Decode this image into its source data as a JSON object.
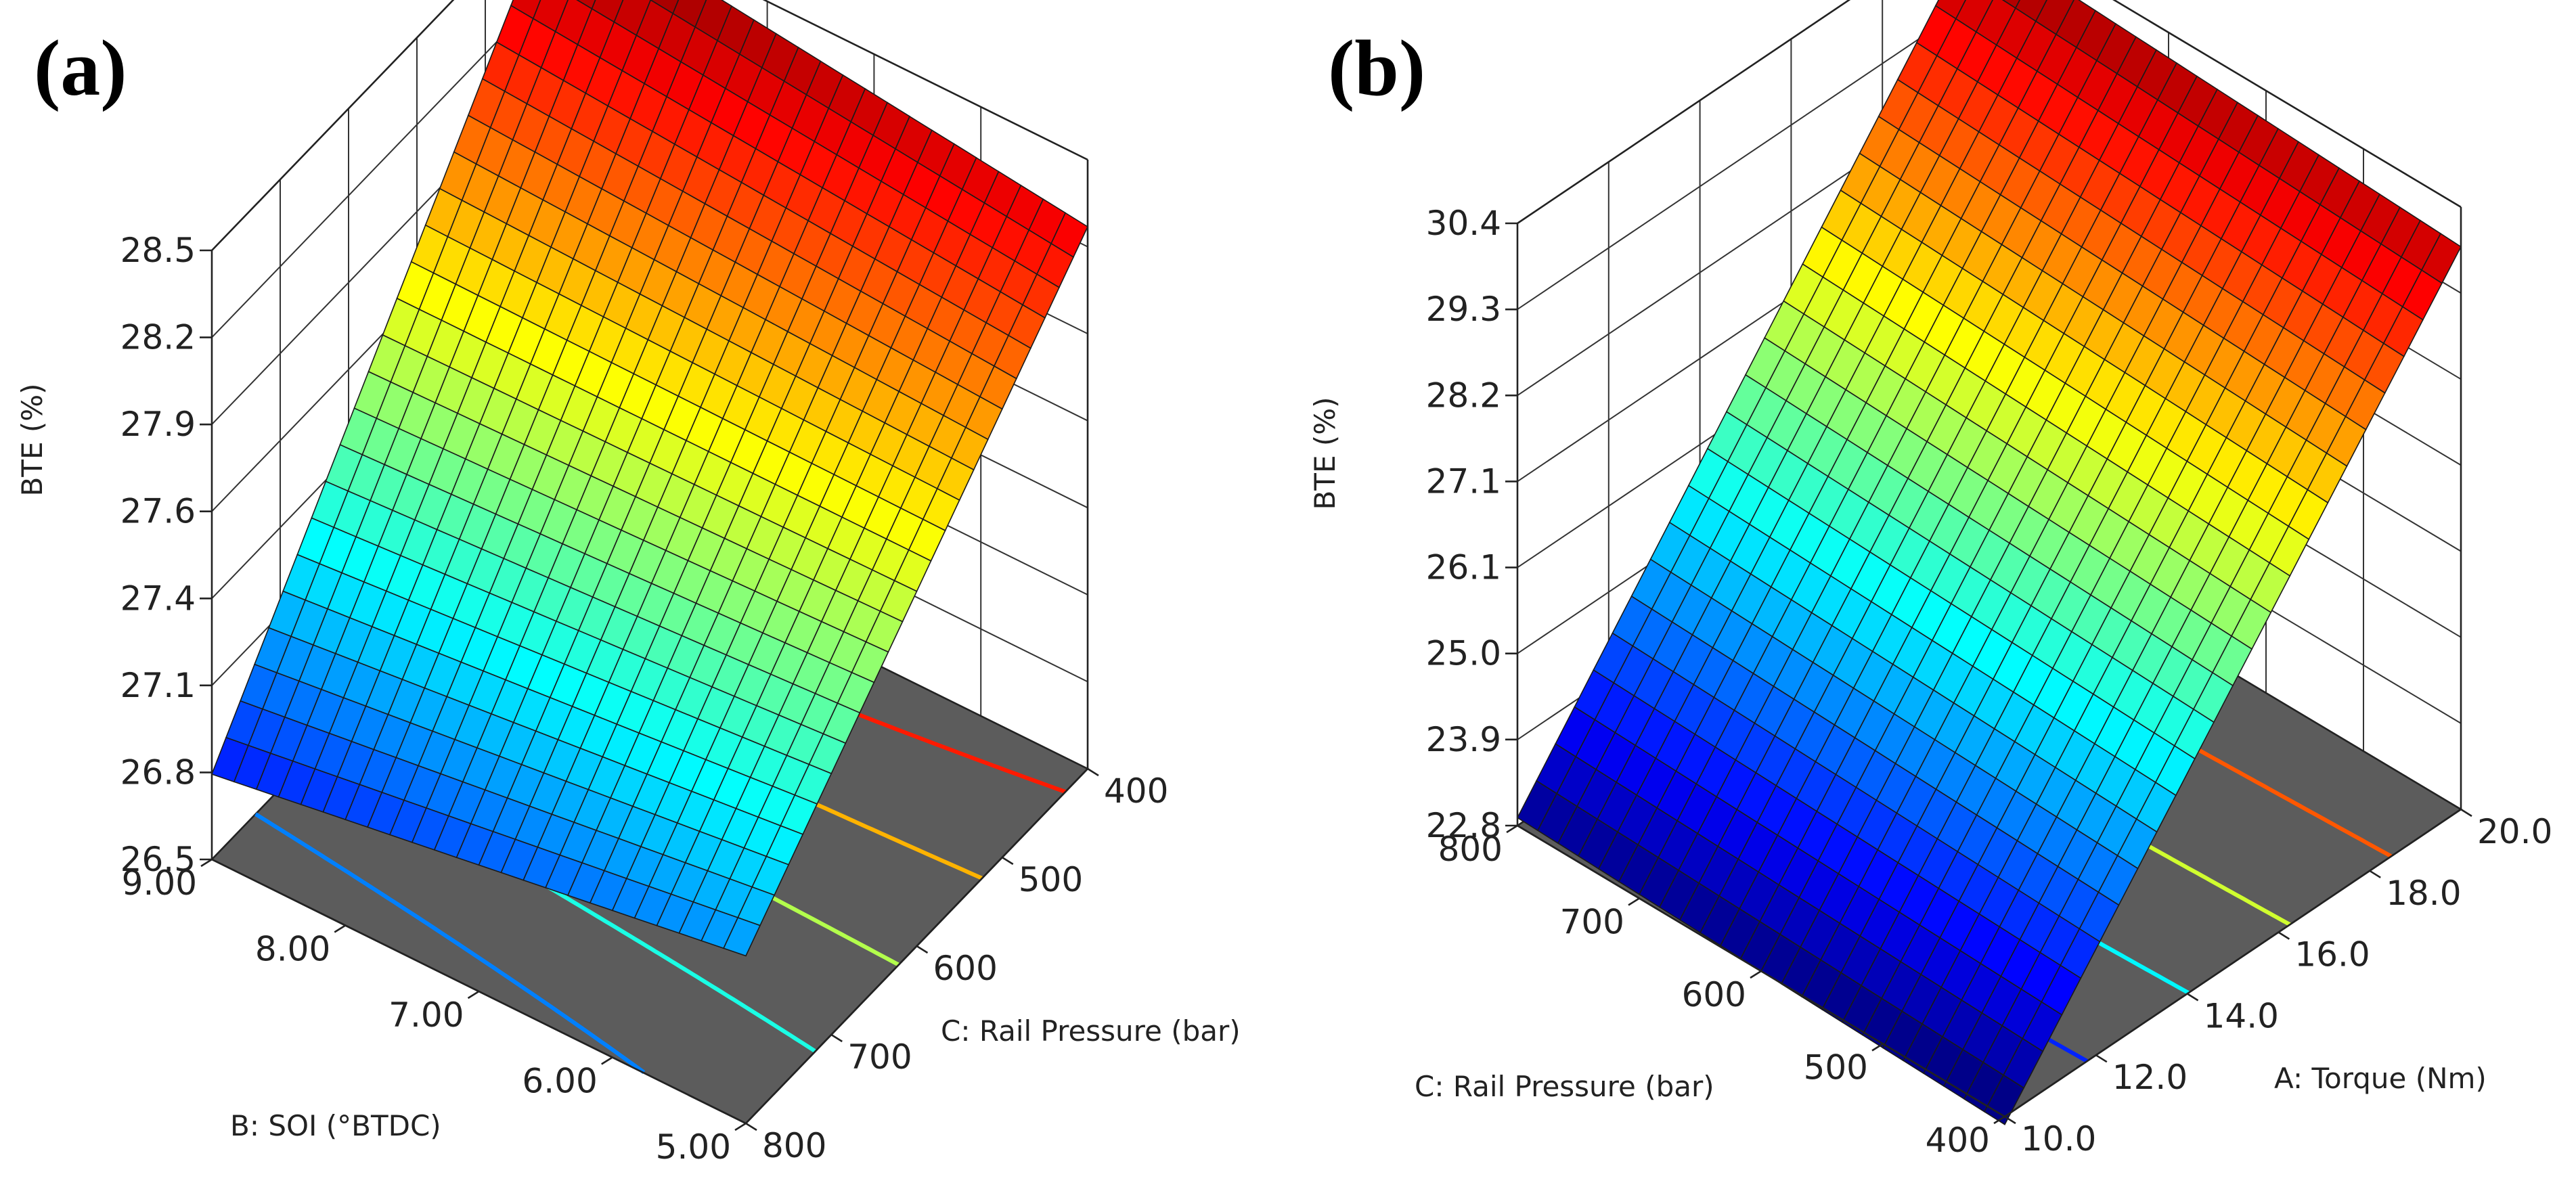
{
  "chart_data": [
    {
      "panel_label": "(a)",
      "type": "surface3d",
      "zlabel": "BTE (%)",
      "z_ticks": [
        "26.5",
        "26.8",
        "27.1",
        "27.4",
        "27.6",
        "27.9",
        "28.2",
        "28.5"
      ],
      "x_axis": {
        "label": "B: SOI (°BTDC)",
        "ticks": [
          "9.00",
          "8.00",
          "7.00",
          "6.00",
          "5.00"
        ],
        "range": [
          9,
          5
        ]
      },
      "y_axis": {
        "label": "C: Rail Pressure (bar)",
        "ticks": [
          "800",
          "700",
          "600",
          "500",
          "400"
        ],
        "range": [
          800,
          400
        ]
      },
      "zlim": [
        26.5,
        28.5
      ],
      "surface_corners": {
        "SOI_9_P800": 26.78,
        "SOI_5_P800": 27.05,
        "SOI_9_P400": 28.5,
        "SOI_5_P400": 28.28
      },
      "contour_levels": [
        27.0,
        27.3,
        27.6,
        27.9,
        28.2
      ],
      "grid_divisions": 24
    },
    {
      "panel_label": "(b)",
      "type": "surface3d",
      "zlabel": "BTE (%)",
      "z_ticks": [
        "22.8",
        "23.9",
        "25.0",
        "26.1",
        "27.1",
        "28.2",
        "29.3",
        "30.4"
      ],
      "x_axis": {
        "label": "C: Rail Pressure (bar)",
        "ticks": [
          "800",
          "700",
          "600",
          "500",
          "400"
        ],
        "range": [
          800,
          400
        ]
      },
      "y_axis": {
        "label": "A: Torque (Nm)",
        "ticks": [
          "10.0",
          "12.0",
          "14.0",
          "16.0",
          "18.0",
          "20.0"
        ],
        "range": [
          10,
          20
        ]
      },
      "zlim": [
        22.8,
        30.4
      ],
      "surface_corners": {
        "P800_T10": 22.9,
        "P400_T10": 22.7,
        "P800_T20": 30.2,
        "P400_T20": 29.9
      },
      "contour_levels": [
        24.0,
        25.6,
        27.2,
        28.8
      ],
      "grid_divisions": 24
    }
  ]
}
